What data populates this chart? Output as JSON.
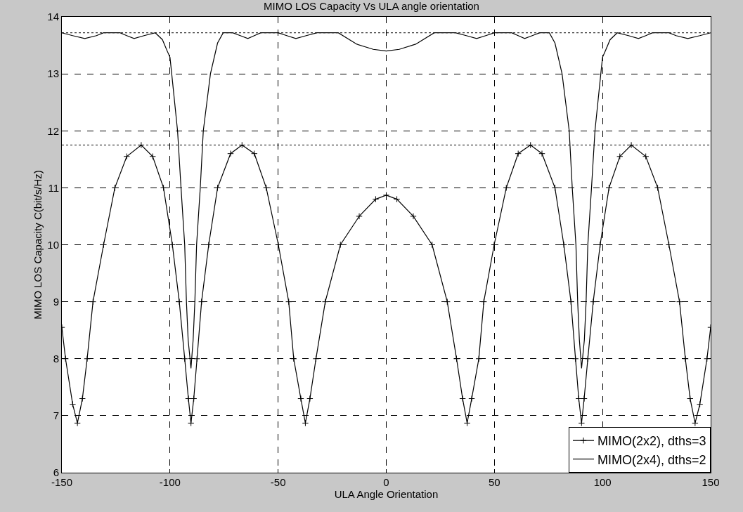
{
  "chart_data": {
    "type": "line",
    "title": "MIMO LOS Capacity Vs ULA angle orientation",
    "xlabel": "ULA Angle Orientation",
    "ylabel": "MIMO LOS Capacity C(bit/s/Hz)",
    "xlim": [
      -150,
      150
    ],
    "xticks": [
      -150,
      -100,
      -50,
      0,
      50,
      100,
      150
    ],
    "ylim": [
      6,
      14
    ],
    "yticks": [
      6,
      7,
      8,
      9,
      10,
      11,
      12,
      13,
      14
    ],
    "grid": true,
    "legend": "bottom right",
    "line_style": "solid",
    "series": [
      {
        "name": "MIMO(2x2), dths=3",
        "color": "#000000",
        "marker": "cross",
        "x": [
          -150,
          -148.3,
          -145,
          -142.8,
          -140.5,
          -138.3,
          -135.6,
          -130.7,
          -125.5,
          -120,
          -113.3,
          -108,
          -103,
          -98.9,
          -95.7,
          -93.2,
          -91.5,
          -90.3,
          -89,
          -87.5,
          -85.4,
          -82.1,
          -78,
          -72,
          -66.7,
          -61,
          -55.5,
          -49.9,
          -45.1,
          -42.8,
          -39.5,
          -37.4,
          -35.3,
          -32.5,
          -28.2,
          -21.2,
          -12.5,
          -4.9,
          0,
          4.9,
          12.5,
          21.2,
          28.2,
          32.5,
          35.3,
          37.4,
          39.5,
          42.8,
          45.1,
          49.9,
          55.5,
          61,
          66.7,
          72,
          78,
          82.1,
          85.4,
          87.5,
          89,
          90.3,
          91.5,
          93.2,
          95.7,
          98.9,
          103,
          108,
          113.3,
          120,
          125.5,
          130.7,
          135.6,
          138.3,
          140.5,
          142.8,
          145,
          148.3,
          150
        ],
        "values": [
          8.55,
          8,
          7.2,
          6.87,
          7.3,
          8,
          9,
          10,
          11,
          11.55,
          11.75,
          11.55,
          11,
          10,
          9,
          8,
          7.3,
          6.87,
          7.3,
          8,
          9,
          10,
          11,
          11.6,
          11.75,
          11.6,
          11,
          10,
          9,
          8,
          7.3,
          6.87,
          7.3,
          8,
          9,
          10,
          10.5,
          10.8,
          10.87,
          10.8,
          10.5,
          10,
          9,
          8,
          7.3,
          6.87,
          7.3,
          8,
          9,
          10,
          11,
          11.6,
          11.75,
          11.6,
          11,
          10,
          9,
          8,
          7.3,
          6.87,
          7.3,
          8,
          9,
          10,
          11,
          11.55,
          11.75,
          11.55,
          11,
          10,
          9,
          8,
          7.3,
          6.87,
          7.2,
          8,
          8.55
        ]
      },
      {
        "name": "MIMO(2x4), dths=2",
        "color": "#000000",
        "marker": "none",
        "x": [
          -150,
          -145,
          -139.4,
          -134,
          -130.7,
          -123.1,
          -120,
          -116.6,
          -112,
          -106.8,
          -103.5,
          -101.4,
          -100,
          -99.2,
          -96.5,
          -94.9,
          -93.2,
          -92.4,
          -91.6,
          -90.3,
          -89.3,
          -88.5,
          -87.7,
          -86,
          -84.6,
          -81.3,
          -78,
          -75.4,
          -71,
          -67.5,
          -64,
          -61,
          -58,
          -50,
          -46,
          -41.8,
          -37,
          -32,
          -22.2,
          -13.6,
          -6,
          0,
          6,
          13.6,
          22.2,
          32,
          37,
          41.8,
          46,
          50,
          58,
          61,
          64,
          67.5,
          71,
          75.4,
          78,
          81.3,
          84.6,
          86,
          87.7,
          88.5,
          89.3,
          90.3,
          91.6,
          92.4,
          93.2,
          94.9,
          96.5,
          99.2,
          100,
          101.4,
          103.5,
          106.8,
          112,
          116.6,
          120,
          123.1,
          130.7,
          134,
          139.4,
          145,
          150
        ],
        "values": [
          13.72,
          13.67,
          13.62,
          13.67,
          13.72,
          13.72,
          13.67,
          13.62,
          13.67,
          13.72,
          13.6,
          13.41,
          13.29,
          13,
          12,
          11,
          10,
          9,
          8.33,
          7.83,
          8.33,
          9,
          10,
          11,
          12,
          13,
          13.54,
          13.72,
          13.72,
          13.67,
          13.62,
          13.67,
          13.72,
          13.72,
          13.67,
          13.62,
          13.67,
          13.72,
          13.72,
          13.52,
          13.43,
          13.4,
          13.43,
          13.52,
          13.72,
          13.72,
          13.67,
          13.62,
          13.67,
          13.72,
          13.72,
          13.67,
          13.62,
          13.67,
          13.72,
          13.72,
          13.54,
          13,
          12,
          11,
          10,
          9,
          8.33,
          7.83,
          8.33,
          9,
          10,
          11,
          12,
          13,
          13.29,
          13.41,
          13.6,
          13.72,
          13.67,
          13.62,
          13.67,
          13.72,
          13.72,
          13.67,
          13.62,
          13.67,
          13.72
        ]
      }
    ],
    "ref_lines": [
      {
        "axis": "y",
        "value": 13.72,
        "label": null,
        "line_style": "dotted",
        "color": "#000000"
      },
      {
        "axis": "y",
        "value": 11.75,
        "label": null,
        "line_style": "dotted",
        "color": "#000000"
      }
    ]
  }
}
